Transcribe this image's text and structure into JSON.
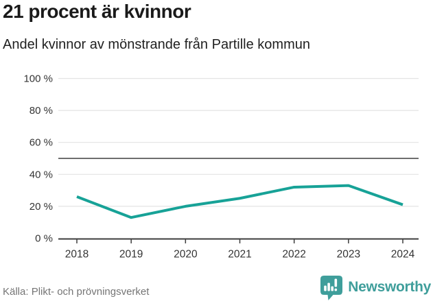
{
  "colors": {
    "accent": "#17a297",
    "brand": "#3f9e9b",
    "grid": "#e3e3e3",
    "reference": "#6e6e6e",
    "axis": "#3d3d3d",
    "axis_text": "#333333",
    "title_text": "#1a1a1a",
    "source_text": "#757575"
  },
  "chart_data": {
    "type": "line",
    "title": "21 procent är kvinnor",
    "subtitle": "Andel kvinnor av mönstrande från Partille kommun",
    "x": [
      2018,
      2019,
      2020,
      2021,
      2022,
      2023,
      2024
    ],
    "values": [
      26,
      13,
      20,
      25,
      32,
      33,
      21
    ],
    "ylim": [
      0,
      100
    ],
    "yticks": [
      0,
      20,
      40,
      60,
      80,
      100
    ],
    "ytick_suffix": " %",
    "reference_line": 50,
    "grid": true,
    "legend": false
  },
  "footer": {
    "source": "Källa: Plikt- och prövningsverket",
    "brand_name": "Newsworthy"
  }
}
